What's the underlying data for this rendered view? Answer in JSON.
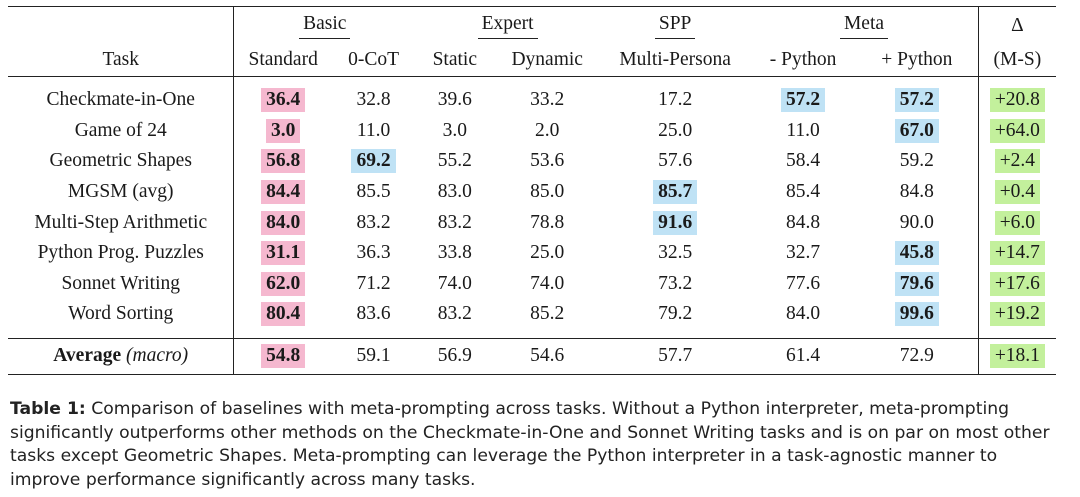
{
  "table": {
    "group_headers": {
      "basic": "Basic",
      "expert": "Expert",
      "spp": "SPP",
      "meta": "Meta",
      "delta": "Δ"
    },
    "columns": {
      "task": "Task",
      "standard": "Standard",
      "zero_cot": "0-CoT",
      "static": "Static",
      "dynamic": "Dynamic",
      "multi_persona": "Multi-Persona",
      "minus_python": "- Python",
      "plus_python": "+ Python",
      "delta_ms": "(M-S)"
    },
    "rows": [
      {
        "task": "Checkmate-in-One",
        "standard": "36.4",
        "zero_cot": "32.8",
        "static": "39.6",
        "dynamic": "33.2",
        "multi_persona": "17.2",
        "minus_python": "57.2",
        "plus_python": "57.2",
        "delta": "+20.8"
      },
      {
        "task": "Game of 24",
        "standard": "3.0",
        "zero_cot": "11.0",
        "static": "3.0",
        "dynamic": "2.0",
        "multi_persona": "25.0",
        "minus_python": "11.0",
        "plus_python": "67.0",
        "delta": "+64.0"
      },
      {
        "task": "Geometric Shapes",
        "standard": "56.8",
        "zero_cot": "69.2",
        "static": "55.2",
        "dynamic": "53.6",
        "multi_persona": "57.6",
        "minus_python": "58.4",
        "plus_python": "59.2",
        "delta": "+2.4"
      },
      {
        "task": "MGSM (avg)",
        "standard": "84.4",
        "zero_cot": "85.5",
        "static": "83.0",
        "dynamic": "85.0",
        "multi_persona": "85.7",
        "minus_python": "85.4",
        "plus_python": "84.8",
        "delta": "+0.4"
      },
      {
        "task": "Multi-Step Arithmetic",
        "standard": "84.0",
        "zero_cot": "83.2",
        "static": "83.2",
        "dynamic": "78.8",
        "multi_persona": "91.6",
        "minus_python": "84.8",
        "plus_python": "90.0",
        "delta": "+6.0"
      },
      {
        "task": "Python Prog. Puzzles",
        "standard": "31.1",
        "zero_cot": "36.3",
        "static": "33.8",
        "dynamic": "25.0",
        "multi_persona": "32.5",
        "minus_python": "32.7",
        "plus_python": "45.8",
        "delta": "+14.7"
      },
      {
        "task": "Sonnet Writing",
        "standard": "62.0",
        "zero_cot": "71.2",
        "static": "74.0",
        "dynamic": "74.0",
        "multi_persona": "73.2",
        "minus_python": "77.6",
        "plus_python": "79.6",
        "delta": "+17.6"
      },
      {
        "task": "Word Sorting",
        "standard": "80.4",
        "zero_cot": "83.6",
        "static": "83.2",
        "dynamic": "85.2",
        "multi_persona": "79.2",
        "minus_python": "84.0",
        "plus_python": "99.6",
        "delta": "+19.2"
      }
    ],
    "average": {
      "label": "Average",
      "label_note": "(macro)",
      "standard": "54.8",
      "zero_cot": "59.1",
      "static": "56.9",
      "dynamic": "54.6",
      "multi_persona": "57.7",
      "minus_python": "61.4",
      "plus_python": "72.9",
      "delta": "+18.1"
    },
    "colors": {
      "standard_highlight": "#f5b8cf",
      "best_highlight": "#bfe2f5",
      "delta_highlight": "#c3f09c"
    }
  },
  "caption": {
    "label": "Table 1:",
    "text": "Comparison of baselines with meta-prompting across tasks. Without a Python interpreter, meta-prompting significantly outperforms other methods on the Checkmate-in-One and Sonnet Writing tasks and is on par on most other tasks except Geometric Shapes. Meta-prompting can leverage the Python interpreter in a task-agnostic manner to improve performance significantly across many tasks."
  }
}
